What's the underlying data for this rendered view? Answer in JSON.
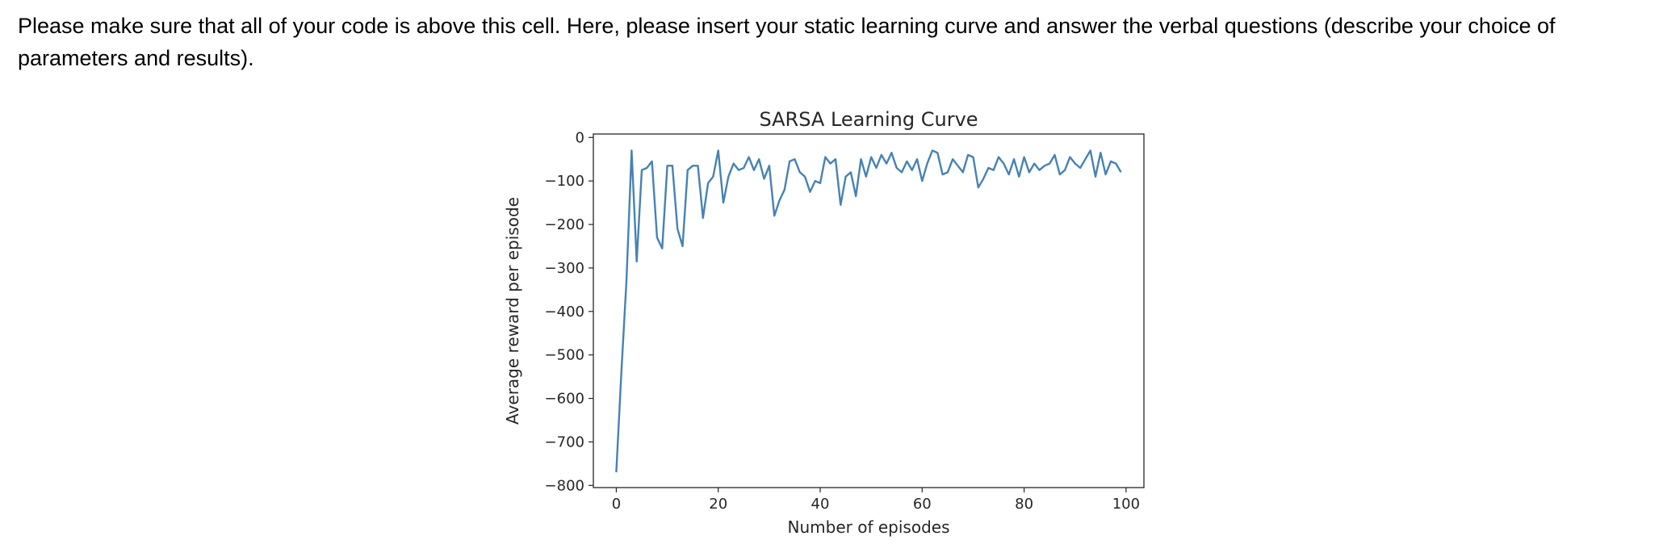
{
  "cell": {
    "instructions": "Please make sure that all of your code is above this cell. Here, please insert your static learning curve and answer the verbal questions (describe your choice of parameters and results)."
  },
  "chart_data": {
    "type": "line",
    "title": "SARSA Learning Curve",
    "xlabel": "Number of episodes",
    "ylabel": "Average reward per episode",
    "xlim": [
      -4.5,
      103.5
    ],
    "ylim": [
      -805,
      8
    ],
    "xticks": [
      0,
      20,
      40,
      60,
      80,
      100
    ],
    "yticks": [
      0,
      -100,
      -200,
      -300,
      -400,
      -500,
      -600,
      -700,
      -800
    ],
    "xtick_labels": [
      "0",
      "20",
      "40",
      "60",
      "80",
      "100"
    ],
    "ytick_labels": [
      "0",
      "−100",
      "−200",
      "−300",
      "−400",
      "−500",
      "−600",
      "−700",
      "−800"
    ],
    "grid": false,
    "line_color": "#4682b4",
    "series": [
      {
        "x": [
          0,
          1,
          2,
          3,
          4,
          5,
          6,
          7,
          8,
          9,
          10,
          11,
          12,
          13,
          14,
          15,
          16,
          17,
          18,
          19,
          20,
          21,
          22,
          23,
          24,
          25,
          26,
          27,
          28,
          29,
          30,
          31,
          32,
          33,
          34,
          35,
          36,
          37,
          38,
          39,
          40,
          41,
          42,
          43,
          44,
          45,
          46,
          47,
          48,
          49,
          50,
          51,
          52,
          53,
          54,
          55,
          56,
          57,
          58,
          59,
          60,
          61,
          62,
          63,
          64,
          65,
          66,
          67,
          68,
          69,
          70,
          71,
          72,
          73,
          74,
          75,
          76,
          77,
          78,
          79,
          80,
          81,
          82,
          83,
          84,
          85,
          86,
          87,
          88,
          89,
          90,
          91,
          92,
          93,
          94,
          95,
          96,
          97,
          98,
          99
        ],
        "values": [
          -770,
          -540,
          -330,
          -30,
          -285,
          -75,
          -70,
          -55,
          -230,
          -255,
          -65,
          -65,
          -210,
          -250,
          -75,
          -65,
          -65,
          -185,
          -105,
          -90,
          -30,
          -150,
          -90,
          -60,
          -75,
          -70,
          -45,
          -75,
          -50,
          -95,
          -65,
          -180,
          -145,
          -120,
          -55,
          -50,
          -80,
          -90,
          -125,
          -100,
          -105,
          -45,
          -60,
          -50,
          -155,
          -90,
          -80,
          -135,
          -50,
          -90,
          -45,
          -70,
          -40,
          -60,
          -35,
          -70,
          -80,
          -55,
          -75,
          -50,
          -100,
          -60,
          -30,
          -35,
          -85,
          -80,
          -50,
          -65,
          -80,
          -40,
          -45,
          -115,
          -95,
          -70,
          -75,
          -45,
          -60,
          -85,
          -50,
          -90,
          -45,
          -80,
          -60,
          -75,
          -65,
          -60,
          -40,
          -85,
          -75,
          -45,
          -60,
          -70,
          -50,
          -30,
          -90,
          -35,
          -85,
          -55,
          -60,
          -80
        ]
      }
    ]
  }
}
